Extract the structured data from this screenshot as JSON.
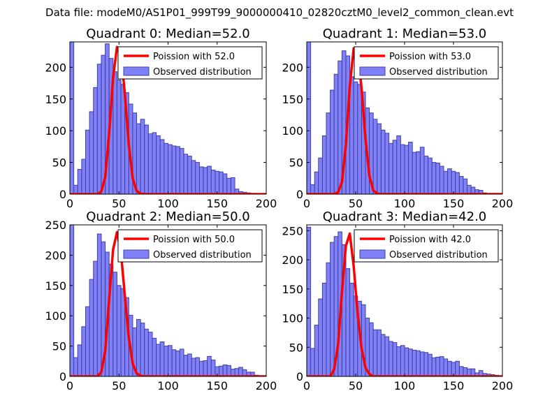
{
  "figure": {
    "suptitle": "Data file: modeM0/AS1P01_999T99_9000000410_02820cztM0_level2_common_clean.evt"
  },
  "colors": {
    "bar_fill": "#8080f8",
    "bar_edge": "#4040a0",
    "poisson_line": "#ff0000",
    "axis": "#000000"
  },
  "chart_data": [
    {
      "type": "bar",
      "title": "Quadrant 0: Median=52.0",
      "xlim": [
        0,
        200
      ],
      "ylim": [
        0,
        240
      ],
      "xticks": [
        0,
        50,
        100,
        150,
        200
      ],
      "yticks": [
        0,
        50,
        100,
        150,
        200
      ],
      "bin_width": 4,
      "bin_starts": [
        0,
        4,
        8,
        12,
        16,
        20,
        24,
        28,
        32,
        36,
        40,
        44,
        48,
        52,
        56,
        60,
        64,
        68,
        72,
        76,
        80,
        84,
        88,
        92,
        96,
        100,
        104,
        108,
        112,
        116,
        120,
        124,
        128,
        132,
        136,
        140,
        144,
        148,
        152,
        156,
        160,
        164,
        168,
        172,
        176,
        180,
        184,
        188,
        192,
        196
      ],
      "counts": [
        241,
        14,
        39,
        55,
        101,
        130,
        168,
        205,
        219,
        237,
        214,
        193,
        180,
        173,
        160,
        142,
        128,
        111,
        118,
        109,
        95,
        97,
        92,
        86,
        80,
        78,
        76,
        75,
        72,
        63,
        60,
        53,
        50,
        43,
        42,
        44,
        38,
        36,
        35,
        32,
        25,
        26,
        8,
        4,
        3,
        2,
        1,
        1,
        1,
        0
      ],
      "legend": {
        "location": "upper right",
        "line_label": "Poission with 52.0",
        "bar_label": "Observed distribution"
      },
      "poisson": {
        "label": "Poission with 52.0",
        "x": [
          0,
          4,
          8,
          12,
          16,
          20,
          24,
          28,
          32,
          36,
          40,
          44,
          48,
          52,
          56,
          60,
          64,
          68,
          72,
          76,
          80,
          84,
          88,
          92,
          96,
          100,
          104,
          108,
          112,
          116,
          120,
          124,
          128,
          132,
          136,
          140,
          144,
          148,
          152,
          156,
          160,
          164,
          168,
          172,
          176,
          180,
          184,
          188,
          192,
          196,
          200
        ],
        "y": [
          0,
          0,
          0,
          0,
          0,
          0,
          0,
          0,
          4,
          27,
          96,
          183,
          232,
          224,
          158,
          78,
          25,
          5,
          1,
          0,
          0,
          0,
          0,
          0,
          0,
          0,
          0,
          0,
          0,
          0,
          0,
          0,
          0,
          0,
          0,
          0,
          0,
          0,
          0,
          0,
          0,
          0,
          0,
          0,
          0,
          0,
          0,
          0,
          0,
          0,
          0
        ]
      }
    },
    {
      "type": "bar",
      "title": "Quadrant 1: Median=53.0",
      "xlim": [
        0,
        200
      ],
      "ylim": [
        0,
        240
      ],
      "xticks": [
        0,
        50,
        100,
        150,
        200
      ],
      "yticks": [
        0,
        50,
        100,
        150,
        200
      ],
      "bin_width": 4,
      "bin_starts": [
        0,
        4,
        8,
        12,
        16,
        20,
        24,
        28,
        32,
        36,
        40,
        44,
        48,
        52,
        56,
        60,
        64,
        68,
        72,
        76,
        80,
        84,
        88,
        92,
        96,
        100,
        104,
        108,
        112,
        116,
        120,
        124,
        128,
        132,
        136,
        140,
        144,
        148,
        152,
        156,
        160,
        164,
        168,
        172,
        176,
        180,
        184,
        188,
        192,
        196
      ],
      "counts": [
        240,
        15,
        35,
        57,
        92,
        128,
        164,
        189,
        210,
        226,
        218,
        185,
        177,
        173,
        161,
        136,
        128,
        118,
        111,
        101,
        96,
        80,
        85,
        92,
        78,
        77,
        82,
        66,
        67,
        74,
        60,
        57,
        50,
        49,
        44,
        36,
        40,
        36,
        34,
        28,
        24,
        14,
        11,
        7,
        6,
        2,
        1,
        1,
        1,
        0
      ],
      "legend": {
        "location": "upper right",
        "line_label": "Poission with 53.0",
        "bar_label": "Observed distribution"
      },
      "poisson": {
        "label": "Poission with 53.0",
        "x": [
          0,
          4,
          8,
          12,
          16,
          20,
          24,
          28,
          32,
          36,
          40,
          44,
          48,
          52,
          56,
          60,
          64,
          68,
          72,
          76,
          80,
          84,
          88,
          92,
          96,
          100,
          104,
          108,
          112,
          116,
          120,
          124,
          128,
          132,
          136,
          140,
          144,
          148,
          152,
          156,
          160,
          164,
          168,
          172,
          176,
          180,
          184,
          188,
          192,
          196,
          200
        ],
        "y": [
          0,
          0,
          0,
          0,
          0,
          0,
          0,
          0,
          3,
          19,
          78,
          170,
          230,
          228,
          167,
          88,
          29,
          6,
          1,
          0,
          0,
          0,
          0,
          0,
          0,
          0,
          0,
          0,
          0,
          0,
          0,
          0,
          0,
          0,
          0,
          0,
          0,
          0,
          0,
          0,
          0,
          0,
          0,
          0,
          0,
          0,
          0,
          0,
          0,
          0,
          0
        ]
      }
    },
    {
      "type": "bar",
      "title": "Quadrant 2: Median=50.0",
      "xlim": [
        0,
        200
      ],
      "ylim": [
        0,
        250
      ],
      "xticks": [
        0,
        50,
        100,
        150,
        200
      ],
      "yticks": [
        0,
        50,
        100,
        150,
        200,
        250
      ],
      "bin_width": 4,
      "bin_starts": [
        0,
        4,
        8,
        12,
        16,
        20,
        24,
        28,
        32,
        36,
        40,
        44,
        48,
        52,
        56,
        60,
        64,
        68,
        72,
        76,
        80,
        84,
        88,
        92,
        96,
        100,
        104,
        108,
        112,
        116,
        120,
        124,
        128,
        132,
        136,
        140,
        144,
        148,
        152,
        156,
        160,
        164,
        168,
        172,
        176,
        180,
        184,
        188,
        192,
        196
      ],
      "counts": [
        250,
        31,
        52,
        82,
        115,
        160,
        190,
        235,
        222,
        205,
        185,
        172,
        150,
        145,
        130,
        101,
        80,
        94,
        88,
        78,
        73,
        63,
        53,
        57,
        50,
        51,
        44,
        42,
        45,
        35,
        37,
        30,
        31,
        25,
        26,
        33,
        27,
        16,
        17,
        19,
        18,
        12,
        13,
        15,
        11,
        7,
        7,
        2,
        1,
        0
      ],
      "legend": {
        "location": "upper right",
        "line_label": "Poission with 50.0",
        "bar_label": "Observed distribution"
      },
      "poisson": {
        "label": "Poission with 50.0",
        "x": [
          0,
          4,
          8,
          12,
          16,
          20,
          24,
          28,
          32,
          36,
          40,
          44,
          48,
          52,
          56,
          60,
          64,
          68,
          72,
          76,
          80,
          84,
          88,
          92,
          96,
          100,
          104,
          108,
          112,
          116,
          120,
          124,
          128,
          132,
          136,
          140,
          144,
          148,
          152,
          156,
          160,
          164,
          168,
          172,
          176,
          180,
          184,
          188,
          192,
          196,
          200
        ],
        "y": [
          0,
          0,
          0,
          0,
          0,
          0,
          0,
          0,
          7,
          42,
          127,
          209,
          238,
          205,
          133,
          64,
          21,
          5,
          1,
          0,
          0,
          0,
          0,
          0,
          0,
          0,
          0,
          0,
          0,
          0,
          0,
          0,
          0,
          0,
          0,
          0,
          0,
          0,
          0,
          0,
          0,
          0,
          0,
          0,
          0,
          0,
          0,
          0,
          0,
          0,
          0
        ]
      }
    },
    {
      "type": "bar",
      "title": "Quadrant 3: Median=42.0",
      "xlim": [
        0,
        200
      ],
      "ylim": [
        0,
        260
      ],
      "xticks": [
        0,
        50,
        100,
        150,
        200
      ],
      "yticks": [
        0,
        50,
        100,
        150,
        200,
        250
      ],
      "bin_width": 4,
      "bin_starts": [
        0,
        4,
        8,
        12,
        16,
        20,
        24,
        28,
        32,
        36,
        40,
        44,
        48,
        52,
        56,
        60,
        64,
        68,
        72,
        76,
        80,
        84,
        88,
        92,
        96,
        100,
        104,
        108,
        112,
        116,
        120,
        124,
        128,
        132,
        136,
        140,
        144,
        148,
        152,
        156,
        160,
        164,
        168,
        172,
        176,
        180,
        184,
        188,
        192,
        196
      ],
      "counts": [
        256,
        48,
        88,
        133,
        160,
        195,
        230,
        240,
        248,
        226,
        185,
        160,
        138,
        129,
        123,
        100,
        92,
        80,
        80,
        72,
        68,
        60,
        58,
        51,
        53,
        49,
        47,
        45,
        44,
        42,
        41,
        38,
        32,
        33,
        34,
        30,
        26,
        24,
        26,
        17,
        15,
        13,
        13,
        6,
        10,
        5,
        4,
        3,
        2,
        1
      ],
      "legend": {
        "location": "upper right",
        "line_label": "Poission with 42.0",
        "bar_label": "Observed distribution"
      },
      "poisson": {
        "label": "Poission with 42.0",
        "x": [
          0,
          4,
          8,
          12,
          16,
          20,
          24,
          28,
          32,
          36,
          40,
          44,
          48,
          52,
          56,
          60,
          64,
          68,
          72,
          76,
          80,
          84,
          88,
          92,
          96,
          100,
          104,
          108,
          112,
          116,
          120,
          124,
          128,
          132,
          136,
          140,
          144,
          148,
          152,
          156,
          160,
          164,
          168,
          172,
          176,
          180,
          184,
          188,
          192,
          196,
          200
        ],
        "y": [
          0,
          0,
          0,
          0,
          0,
          0,
          0,
          12,
          54,
          146,
          224,
          245,
          189,
          108,
          49,
          15,
          4,
          0,
          0,
          0,
          0,
          0,
          0,
          0,
          0,
          0,
          0,
          0,
          0,
          0,
          0,
          0,
          0,
          0,
          0,
          0,
          0,
          0,
          0,
          0,
          0,
          0,
          0,
          0,
          0,
          0,
          0,
          0,
          0,
          0,
          0
        ]
      }
    }
  ]
}
